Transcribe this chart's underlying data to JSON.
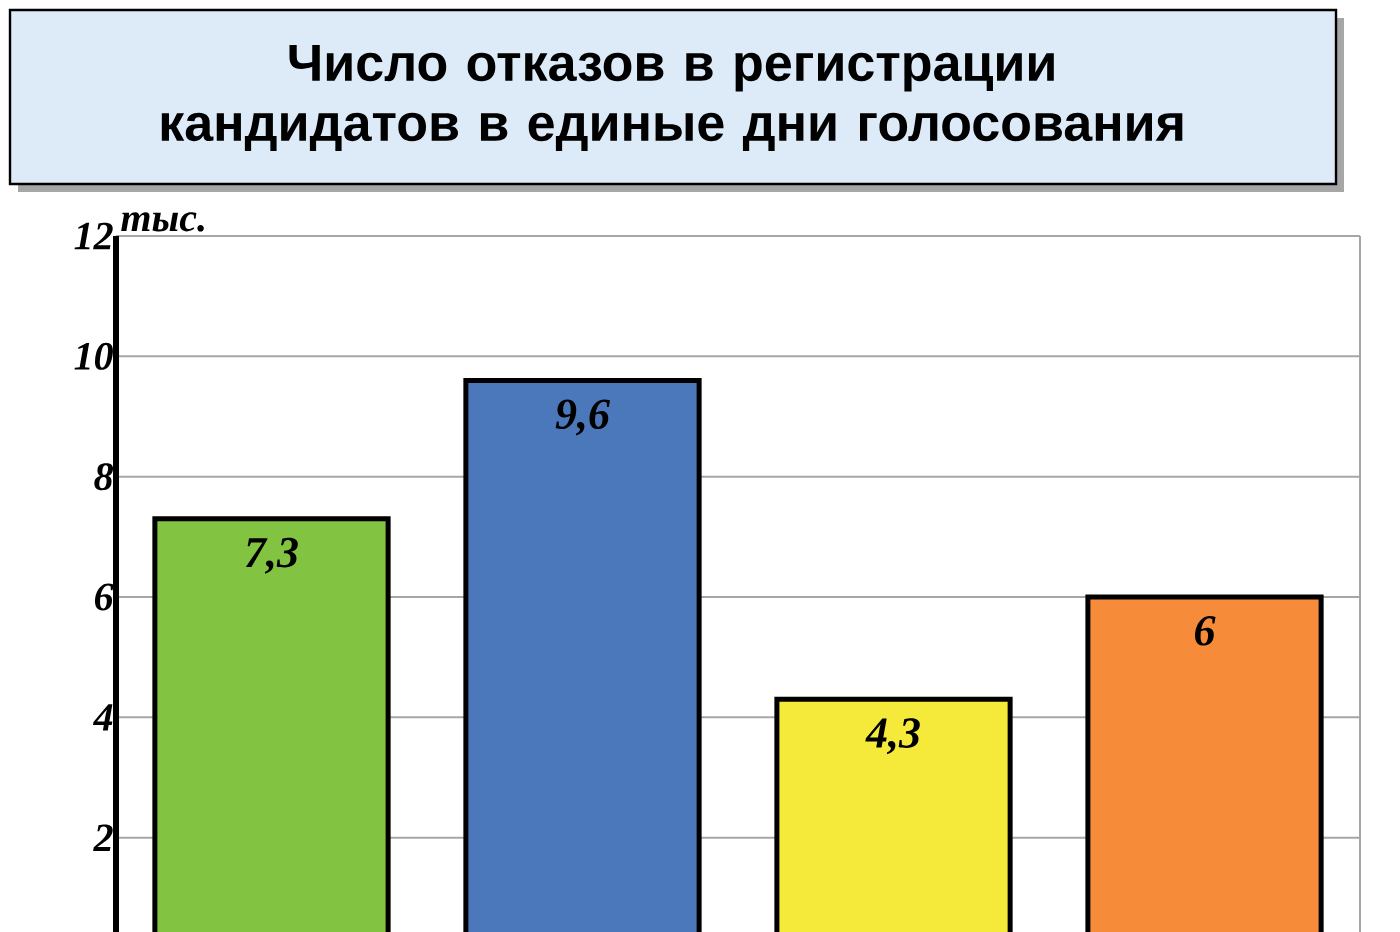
{
  "chart_data": {
    "type": "bar",
    "title": "Число отказов в регистрации кандидатов в единые дни голосования",
    "ylabel": "тыс.",
    "categories": [
      null,
      null,
      null,
      null
    ],
    "values": [
      7.3,
      9.6,
      4.3,
      6
    ],
    "value_labels": [
      "7,3",
      "9,6",
      "4,3",
      "6"
    ],
    "colors": [
      "#82c341",
      "#4a78bb",
      "#f5ea3a",
      "#f68b3a"
    ],
    "ylim": [
      0,
      12
    ],
    "yticks": [
      2,
      4,
      6,
      8,
      10,
      12
    ],
    "grid": "y"
  }
}
